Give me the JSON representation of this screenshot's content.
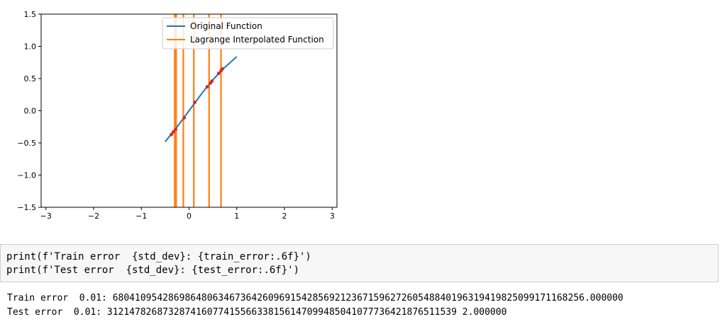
{
  "chart_data": {
    "type": "line",
    "xlim": [
      -3.1,
      3.1
    ],
    "ylim": [
      -1.5,
      1.5
    ],
    "xticks": [
      -3,
      -2,
      -1,
      0,
      1,
      2,
      3
    ],
    "xtick_labels": [
      "−3",
      "−2",
      "−1",
      "0",
      "1",
      "2",
      "3"
    ],
    "yticks": [
      1.5,
      1.0,
      0.5,
      0.0,
      -0.5,
      -1.0,
      -1.5
    ],
    "ytick_labels": [
      "1.5",
      "1.0",
      "0.5",
      "0.0",
      "−0.5",
      "−1.0",
      "−1.5"
    ],
    "legend_position": "top-center",
    "series": [
      {
        "name": "Original Function",
        "color": "#1f77b4",
        "x": [
          -0.5,
          -0.3,
          -0.1,
          0.0,
          0.1,
          0.3,
          0.5,
          0.7,
          1.0
        ],
        "y": [
          -0.48,
          -0.3,
          -0.1,
          0.0,
          0.1,
          0.3,
          0.48,
          0.64,
          0.84
        ]
      },
      {
        "name": "Lagrange Interpolated Function",
        "color": "#ff7f0e",
        "vertical_lines_x": [
          -0.3,
          -0.27,
          -0.12,
          0.1,
          0.42,
          0.67
        ]
      }
    ],
    "scatter": {
      "color": "#d62728",
      "x": [
        -0.37,
        -0.33,
        -0.28,
        -0.1,
        0.12,
        0.38,
        0.45,
        0.48,
        0.62,
        0.67,
        0.7
      ],
      "y": [
        -0.37,
        -0.33,
        -0.29,
        -0.11,
        0.13,
        0.37,
        0.43,
        0.46,
        0.58,
        0.62,
        0.65
      ]
    }
  },
  "code_cell": {
    "line1": "print(f'Train error  {std_dev}: {train_error:.6f}')",
    "line2": "print(f'Test error  {std_dev}: {test_error:.6f}')"
  },
  "output": {
    "line1": "Train error  0.01: 6804109542869864806346736426096915428569212367159627260548840196319419825099171168256.000000",
    "line2": "Test error  0.01: 312147826873287416077415566338156147099485041077736421876511539 2.000000"
  }
}
